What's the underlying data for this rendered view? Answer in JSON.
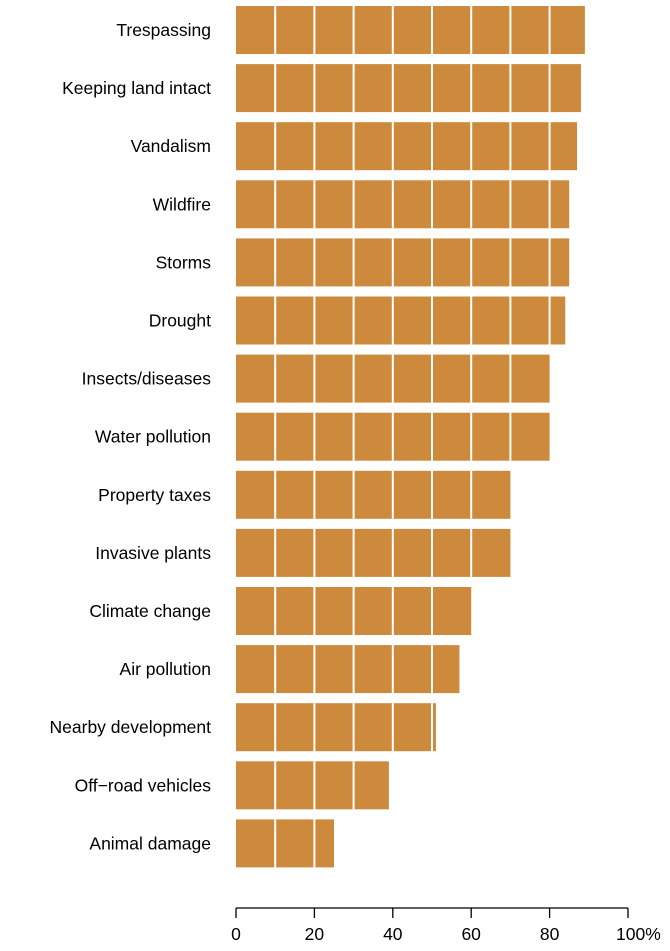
{
  "chart_data": {
    "type": "bar",
    "orientation": "horizontal",
    "categories": [
      "Trespassing",
      "Keeping land intact",
      "Vandalism",
      "Wildfire",
      "Storms",
      "Drought",
      "Insects/diseases",
      "Water pollution",
      "Property taxes",
      "Invasive plants",
      "Climate change",
      "Air pollution",
      "Nearby development",
      "Off−road vehicles",
      "Animal damage"
    ],
    "values": [
      89,
      88,
      87,
      85,
      85,
      84,
      80,
      80,
      70,
      70,
      60,
      57,
      51,
      39,
      25
    ],
    "xlim": [
      0,
      100
    ],
    "xticks": [
      0,
      20,
      40,
      60,
      80,
      100
    ],
    "xtick_labels": [
      "0",
      "20",
      "40",
      "60",
      "80",
      "100%"
    ],
    "grid_step": 10,
    "bar_color": "#CD8A3C",
    "grid_color": "#ffffff",
    "title": "",
    "xlabel": "",
    "ylabel": ""
  }
}
